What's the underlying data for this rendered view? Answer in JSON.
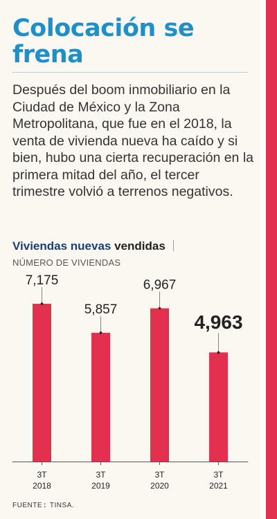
{
  "title": "Colocación se frena",
  "intro": "Después del boom inmobiliario en la Ciudad de México y la Zona Metropolitana, que fue en el 2018, la venta de vivienda nueva ha caído y si bien, hubo una cierta recuperación en la primera mitad del año, el tercer trimestre volvió a terrenos negativos.",
  "chart_heading": {
    "part1": "Viviendas nuevas",
    "part2": "vendidas",
    "subtitle": "NÚMERO DE VIVIENDAS"
  },
  "colors": {
    "bar": "#e3304f",
    "title": "#1f8fc8",
    "heading": "#1b3f73",
    "accent": "#e3304f"
  },
  "chart_data": {
    "type": "bar",
    "categories": [
      "3T 2018",
      "3T 2019",
      "3T 2020",
      "3T 2021"
    ],
    "category_lines": [
      [
        "3T",
        "2018"
      ],
      [
        "3T",
        "2019"
      ],
      [
        "3T",
        "2020"
      ],
      [
        "3T",
        "2021"
      ]
    ],
    "values": [
      7175,
      5857,
      6967,
      4963
    ],
    "value_labels": [
      "7,175",
      "5,857",
      "6,967",
      "4,963"
    ],
    "highlighted_index": 3,
    "title": "Viviendas nuevas vendidas",
    "ylabel": "NÚMERO DE VIVIENDAS",
    "ylim": [
      0,
      8400
    ],
    "grid": false
  },
  "source": {
    "label": "FUENTE",
    "sep": ":",
    "text": "TINSA",
    "end": "."
  }
}
